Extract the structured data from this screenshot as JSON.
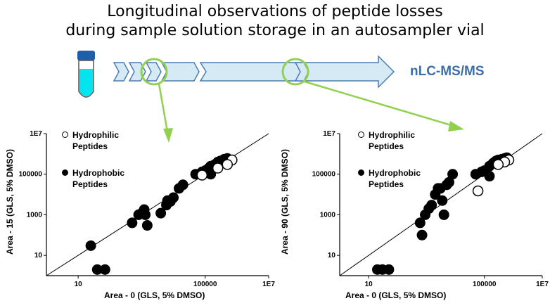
{
  "header": {
    "title_line1": "Longitudinal observations of peptide losses",
    "title_line2": "during sample solution storage in an autosampler vial",
    "destination": "nLC-MS/MS"
  },
  "colors": {
    "arrow_fill": "#d6eaf5",
    "arrow_stroke": "#4a7db3",
    "callout": "#92d050",
    "tube_liquid": "#00e5f0",
    "tube_cap": "#1f5fa8"
  },
  "chart_data": [
    {
      "type": "scatter",
      "xlabel": "Area - 0 (GLS, 5% DMSO)",
      "ylabel": "Area - 15 (GLS, 5% DMSO)",
      "scale": "log",
      "xlim": [
        1,
        10000000
      ],
      "ylim": [
        1,
        10000000
      ],
      "x_ticks": [
        "10",
        "100000",
        "1E7"
      ],
      "y_ticks": [
        "10",
        "1000",
        "100000",
        "1E7"
      ],
      "identity_line": true,
      "legend": {
        "position": "top-left",
        "entries": [
          {
            "symbol": "open",
            "line1": "Hydrophilic",
            "line2": "Peptides"
          },
          {
            "symbol": "filled",
            "line1": "Hydrophobic",
            "line2": "Peptides"
          }
        ]
      },
      "series": [
        {
          "name": "Hydrophilic Peptides",
          "marker": "open",
          "points": [
            [
              700000,
              500000
            ],
            [
              500000,
              300000
            ],
            [
              80000,
              90000
            ],
            [
              250000,
              200000
            ]
          ]
        },
        {
          "name": "Hydrophobic Peptides",
          "marker": "filled",
          "points": [
            [
              25,
              30
            ],
            [
              40,
              2
            ],
            [
              70,
              2
            ],
            [
              500,
              400
            ],
            [
              800,
              1000
            ],
            [
              1000,
              1200
            ],
            [
              1200,
              1800
            ],
            [
              1300,
              1000
            ],
            [
              1500,
              300
            ],
            [
              4000,
              1200
            ],
            [
              6000,
              3000
            ],
            [
              6500,
              5000
            ],
            [
              8000,
              4500
            ],
            [
              10000,
              7000
            ],
            [
              15000,
              20000
            ],
            [
              20000,
              30000
            ],
            [
              50000,
              100000
            ],
            [
              80000,
              130000
            ],
            [
              100000,
              150000
            ],
            [
              130000,
              200000
            ],
            [
              150000,
              250000
            ],
            [
              200000,
              300000
            ],
            [
              250000,
              400000
            ],
            [
              300000,
              450000
            ],
            [
              400000,
              550000
            ],
            [
              500000,
              600000
            ],
            [
              150000,
              100000
            ]
          ]
        }
      ]
    },
    {
      "type": "scatter",
      "xlabel": "Area - 0 (GLS, 5% DMSO)",
      "ylabel": "Area - 90 (GLS, 5% DMSO)",
      "scale": "log",
      "xlim": [
        1,
        10000000
      ],
      "ylim": [
        1,
        10000000
      ],
      "x_ticks": [
        "10",
        "100000",
        "1E7"
      ],
      "y_ticks": [
        "10",
        "1000",
        "100000",
        "1E7"
      ],
      "identity_line": true,
      "legend": {
        "position": "top-left",
        "entries": [
          {
            "symbol": "open",
            "line1": "Hydrophilic",
            "line2": "Peptides"
          },
          {
            "symbol": "filled",
            "line1": "Hydrophobic",
            "line2": "Peptides"
          }
        ]
      },
      "series": [
        {
          "name": "Hydrophilic Peptides",
          "marker": "open",
          "points": [
            [
              700000,
              500000
            ],
            [
              500000,
              400000
            ],
            [
              60000,
              15000
            ],
            [
              300000,
              300000
            ]
          ]
        },
        {
          "name": "Hydrophobic Peptides",
          "marker": "filled",
          "points": [
            [
              20,
              2
            ],
            [
              30,
              2
            ],
            [
              50,
              2
            ],
            [
              600,
              400
            ],
            [
              700,
              100
            ],
            [
              900,
              1000
            ],
            [
              1200,
              2000
            ],
            [
              1500,
              3000
            ],
            [
              2000,
              10000
            ],
            [
              2500,
              20000
            ],
            [
              3000,
              20000
            ],
            [
              3500,
              5000
            ],
            [
              4000,
              1000
            ],
            [
              5000,
              30000
            ],
            [
              6000,
              40000
            ],
            [
              8000,
              100000
            ],
            [
              50000,
              100000
            ],
            [
              80000,
              130000
            ],
            [
              100000,
              150000
            ],
            [
              150000,
              250000
            ],
            [
              200000,
              350000
            ],
            [
              250000,
              450000
            ],
            [
              300000,
              500000
            ],
            [
              400000,
              550000
            ],
            [
              500000,
              600000
            ],
            [
              600000,
              650000
            ],
            [
              150000,
              80000
            ]
          ]
        }
      ]
    }
  ]
}
